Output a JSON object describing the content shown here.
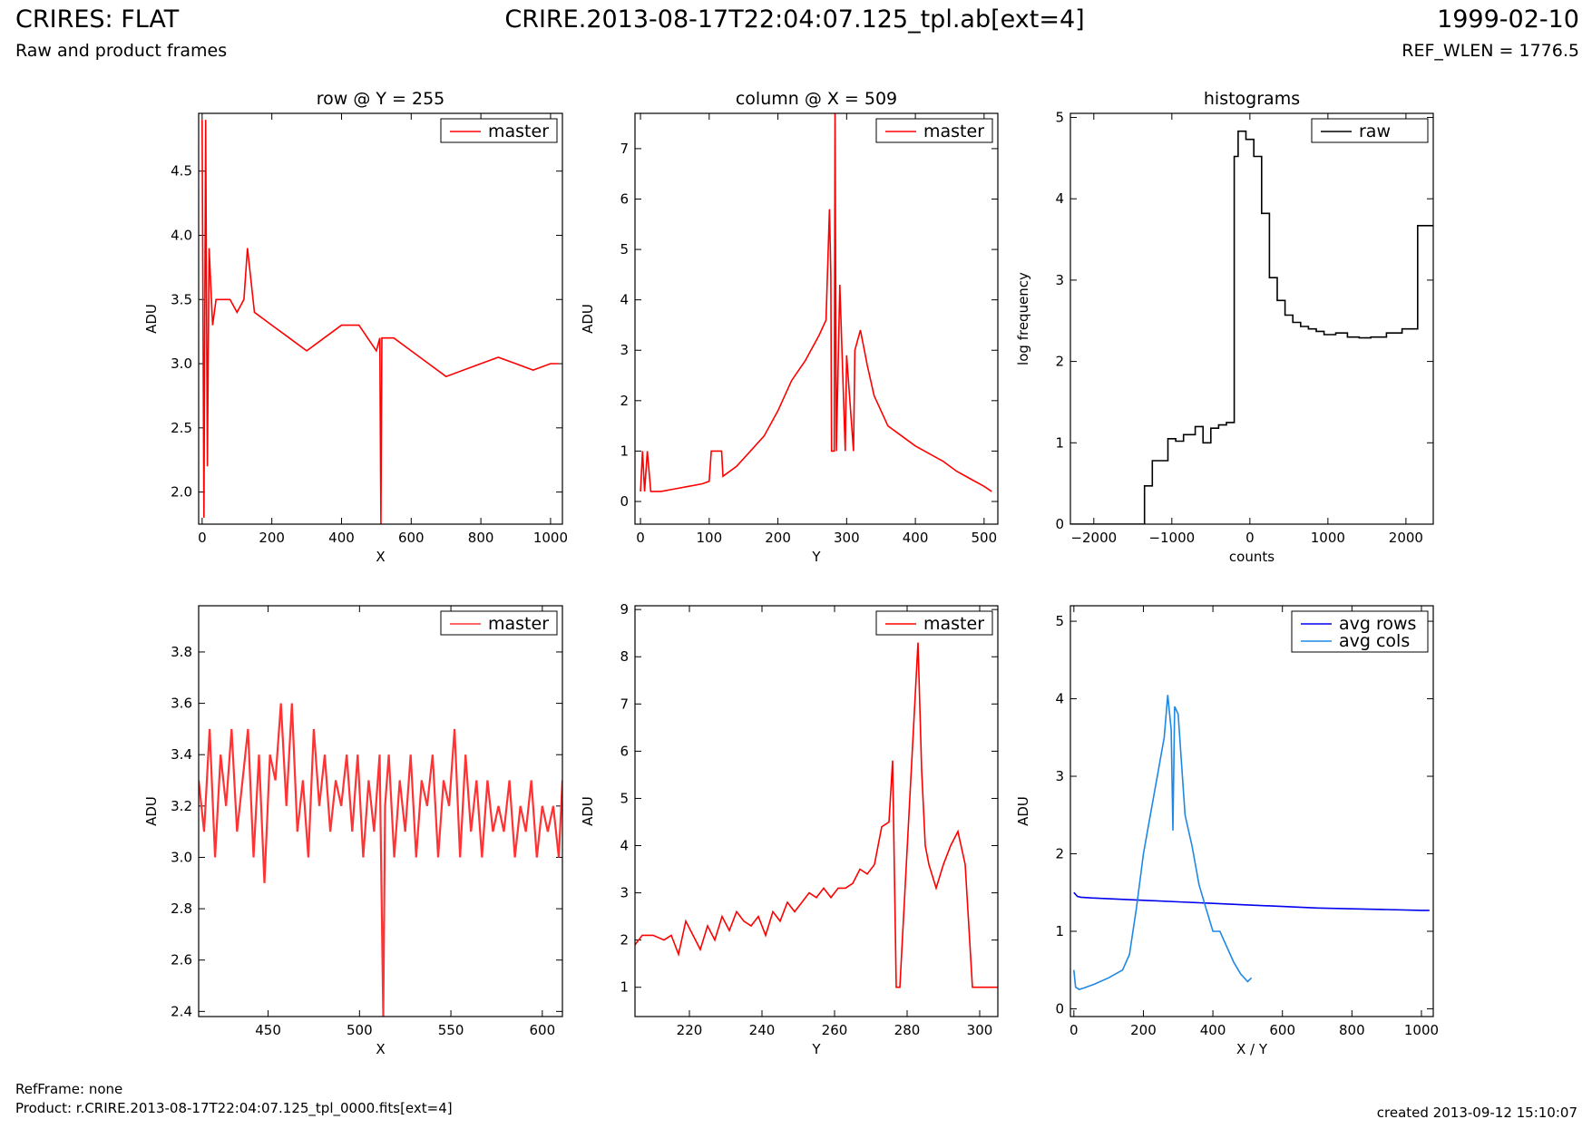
{
  "header": {
    "title_left": "CRIRES: FLAT",
    "subtitle_left": "Raw and product frames",
    "title_center": "CRIRE.2013-08-17T22:04:07.125_tpl.ab[ext=4]",
    "title_right": "1999-02-10",
    "subtitle_right": "REF_WLEN = 1776.5"
  },
  "footer": {
    "ref_frame": "RefFrame: none",
    "product": "Product: r.CRIRE.2013-08-17T22:04:07.125_tpl_0000.fits[ext=4]",
    "created": "created 2013-09-12 15:10:07"
  },
  "chart_data": [
    {
      "type": "line",
      "title": "row @ Y = 255",
      "xlabel": "X",
      "ylabel": "ADU",
      "xlim": [
        -10,
        1034
      ],
      "ylim": [
        1.75,
        4.95
      ],
      "xticks": [
        0,
        200,
        400,
        600,
        800,
        1000
      ],
      "yticks": [
        2.0,
        2.5,
        3.0,
        3.5,
        4.0,
        4.5
      ],
      "legend_position": "top-right",
      "series": [
        {
          "name": "master",
          "color": "#ff0000",
          "x": [
            0,
            5,
            10,
            15,
            20,
            30,
            40,
            60,
            80,
            100,
            120,
            130,
            150,
            200,
            250,
            300,
            350,
            400,
            450,
            500,
            510,
            513,
            516,
            550,
            600,
            650,
            700,
            750,
            800,
            850,
            900,
            950,
            1000,
            1023
          ],
          "y": [
            4.9,
            1.8,
            4.9,
            2.2,
            3.9,
            3.3,
            3.5,
            3.5,
            3.5,
            3.4,
            3.5,
            3.9,
            3.4,
            3.3,
            3.2,
            3.1,
            3.2,
            3.3,
            3.3,
            3.1,
            3.2,
            1.75,
            3.2,
            3.2,
            3.1,
            3.0,
            2.9,
            2.95,
            3.0,
            3.05,
            3.0,
            2.95,
            3.0,
            3.0
          ]
        }
      ]
    },
    {
      "type": "line",
      "title": "column @ X = 509",
      "xlabel": "Y",
      "ylabel": "ADU",
      "xlim": [
        -8,
        520
      ],
      "ylim": [
        -0.45,
        7.7
      ],
      "xticks": [
        0,
        100,
        200,
        300,
        400,
        500
      ],
      "yticks": [
        0,
        1,
        2,
        3,
        4,
        5,
        6,
        7
      ],
      "legend_position": "top-right",
      "series": [
        {
          "name": "master",
          "color": "#ff0000",
          "x": [
            0,
            3,
            6,
            10,
            15,
            30,
            50,
            70,
            90,
            100,
            103,
            118,
            120,
            140,
            160,
            180,
            200,
            220,
            240,
            260,
            270,
            275,
            277,
            278,
            282,
            283,
            285,
            290,
            298,
            300,
            310,
            312,
            320,
            330,
            340,
            350,
            360,
            380,
            400,
            420,
            440,
            460,
            480,
            500,
            511
          ],
          "y": [
            0.2,
            1.0,
            0.2,
            1.0,
            0.2,
            0.2,
            0.25,
            0.3,
            0.35,
            0.4,
            1.0,
            1.0,
            0.5,
            0.7,
            1.0,
            1.3,
            1.8,
            2.4,
            2.8,
            3.3,
            3.6,
            5.8,
            4.5,
            1.0,
            1.0,
            7.7,
            1.0,
            4.3,
            1.0,
            2.9,
            1.0,
            3.0,
            3.4,
            2.7,
            2.1,
            1.8,
            1.5,
            1.3,
            1.1,
            0.95,
            0.8,
            0.6,
            0.45,
            0.3,
            0.2
          ]
        }
      ]
    },
    {
      "type": "line",
      "title": "histograms",
      "xlabel": "counts",
      "ylabel": "log frequency",
      "xlim": [
        -2300,
        2350
      ],
      "ylim": [
        0,
        5.05
      ],
      "xticks": [
        -2000,
        -1000,
        0,
        1000,
        2000
      ],
      "yticks": [
        0,
        1,
        2,
        3,
        4,
        5
      ],
      "legend_position": "top-right",
      "series": [
        {
          "name": "raw",
          "color": "#000000",
          "step": true,
          "x": [
            -2300,
            -1350,
            -1350,
            -1250,
            -1250,
            -1050,
            -1050,
            -950,
            -950,
            -850,
            -850,
            -700,
            -700,
            -600,
            -600,
            -500,
            -500,
            -400,
            -400,
            -300,
            -300,
            -200,
            -200,
            -150,
            -150,
            -50,
            -50,
            50,
            50,
            150,
            150,
            250,
            250,
            350,
            350,
            450,
            450,
            550,
            550,
            650,
            650,
            750,
            750,
            850,
            850,
            950,
            950,
            1100,
            1100,
            1250,
            1250,
            1400,
            1400,
            1550,
            1550,
            1750,
            1750,
            1950,
            1950,
            2150,
            2150,
            2250,
            2250,
            2350
          ],
          "y": [
            0,
            0,
            0.47,
            0.47,
            0.78,
            0.78,
            1.05,
            1.05,
            1.02,
            1.02,
            1.1,
            1.1,
            1.2,
            1.2,
            1.0,
            1.0,
            1.18,
            1.18,
            1.22,
            1.22,
            1.25,
            1.25,
            4.52,
            4.52,
            4.83,
            4.83,
            4.73,
            4.73,
            4.52,
            4.52,
            3.82,
            3.82,
            3.03,
            3.03,
            2.75,
            2.75,
            2.57,
            2.57,
            2.48,
            2.48,
            2.43,
            2.43,
            2.4,
            2.4,
            2.37,
            2.37,
            2.33,
            2.33,
            2.35,
            2.35,
            2.3,
            2.3,
            2.29,
            2.29,
            2.3,
            2.3,
            2.35,
            2.35,
            2.4,
            2.4,
            3.67,
            3.67,
            3.67,
            3.67
          ]
        }
      ]
    },
    {
      "type": "line",
      "title": "",
      "xlabel": "X",
      "ylabel": "ADU",
      "xlim": [
        412,
        611
      ],
      "ylim": [
        2.38,
        3.98
      ],
      "xticks": [
        450,
        500,
        550,
        600
      ],
      "yticks": [
        2.4,
        2.6,
        2.8,
        3.0,
        3.2,
        3.4,
        3.6,
        3.8
      ],
      "legend_position": "top-right",
      "series": [
        {
          "name": "master",
          "color": "#ff3333",
          "x": [
            412,
            415,
            418,
            421,
            424,
            427,
            430,
            433,
            436,
            439,
            442,
            445,
            448,
            451,
            454,
            457,
            460,
            463,
            466,
            469,
            472,
            475,
            478,
            481,
            484,
            487,
            490,
            493,
            496,
            499,
            502,
            505,
            508,
            511,
            513,
            514,
            516,
            519,
            522,
            525,
            528,
            531,
            534,
            537,
            540,
            543,
            546,
            549,
            552,
            555,
            558,
            561,
            564,
            567,
            570,
            573,
            576,
            579,
            582,
            585,
            588,
            591,
            594,
            597,
            600,
            603,
            606,
            609,
            611
          ],
          "y": [
            3.3,
            3.1,
            3.5,
            3.0,
            3.4,
            3.2,
            3.5,
            3.1,
            3.3,
            3.5,
            3.0,
            3.4,
            2.9,
            3.4,
            3.3,
            3.6,
            3.2,
            3.6,
            3.1,
            3.3,
            3.0,
            3.5,
            3.2,
            3.4,
            3.1,
            3.3,
            3.2,
            3.4,
            3.1,
            3.4,
            3.0,
            3.3,
            3.1,
            3.4,
            2.38,
            3.2,
            3.4,
            3.0,
            3.3,
            3.1,
            3.4,
            3.0,
            3.3,
            3.2,
            3.4,
            3.0,
            3.3,
            3.2,
            3.5,
            3.0,
            3.4,
            3.1,
            3.3,
            3.0,
            3.3,
            3.1,
            3.2,
            3.1,
            3.3,
            3.0,
            3.2,
            3.1,
            3.3,
            3.0,
            3.2,
            3.1,
            3.2,
            3.0,
            3.3
          ]
        }
      ]
    },
    {
      "type": "line",
      "title": "",
      "xlabel": "Y",
      "ylabel": "ADU",
      "xlim": [
        205,
        305
      ],
      "ylim": [
        0.38,
        9.08
      ],
      "xticks": [
        220,
        240,
        260,
        280,
        300
      ],
      "yticks": [
        1,
        2,
        3,
        4,
        5,
        6,
        7,
        8,
        9
      ],
      "legend_position": "top-right",
      "series": [
        {
          "name": "master",
          "color": "#ff0000",
          "step": true,
          "x": [
            205,
            207,
            210,
            213,
            215,
            217,
            219,
            221,
            223,
            225,
            227,
            229,
            231,
            233,
            235,
            237,
            239,
            241,
            243,
            245,
            247,
            249,
            251,
            253,
            255,
            257,
            259,
            261,
            263,
            265,
            267,
            269,
            271,
            273,
            275,
            276,
            277,
            278,
            283,
            284,
            285,
            286,
            288,
            290,
            292,
            294,
            296,
            298,
            300,
            305
          ],
          "y": [
            1.9,
            2.1,
            2.1,
            2.0,
            2.1,
            1.7,
            2.4,
            2.1,
            1.8,
            2.3,
            2.0,
            2.5,
            2.2,
            2.6,
            2.4,
            2.3,
            2.5,
            2.1,
            2.6,
            2.4,
            2.8,
            2.6,
            2.8,
            3.0,
            2.9,
            3.1,
            2.9,
            3.1,
            3.1,
            3.2,
            3.5,
            3.4,
            3.6,
            4.4,
            4.5,
            5.8,
            1.0,
            1.0,
            8.3,
            5.6,
            4.0,
            3.6,
            3.1,
            3.6,
            4.0,
            4.3,
            3.6,
            1.0,
            1.0,
            1.0
          ]
        }
      ]
    },
    {
      "type": "line",
      "title": "",
      "xlabel": "X / Y",
      "ylabel": "ADU",
      "xlim": [
        -10,
        1034
      ],
      "ylim": [
        -0.1,
        5.2
      ],
      "xticks": [
        0,
        200,
        400,
        600,
        800,
        1000
      ],
      "yticks": [
        0,
        1,
        2,
        3,
        4,
        5
      ],
      "legend_position": "top-right",
      "series": [
        {
          "name": "avg rows",
          "color": "#0000ee",
          "x": [
            0,
            10,
            20,
            50,
            100,
            200,
            300,
            400,
            500,
            600,
            700,
            800,
            900,
            1000,
            1023
          ],
          "y": [
            1.5,
            1.45,
            1.44,
            1.43,
            1.42,
            1.4,
            1.38,
            1.36,
            1.34,
            1.32,
            1.3,
            1.29,
            1.28,
            1.27,
            1.27
          ]
        },
        {
          "name": "avg cols",
          "color": "#1e88e5",
          "x": [
            0,
            5,
            15,
            30,
            60,
            100,
            140,
            160,
            180,
            200,
            220,
            240,
            260,
            270,
            280,
            285,
            290,
            300,
            320,
            340,
            360,
            380,
            400,
            420,
            440,
            460,
            480,
            500,
            511
          ],
          "y": [
            0.5,
            0.28,
            0.25,
            0.27,
            0.32,
            0.4,
            0.5,
            0.7,
            1.3,
            2.0,
            2.5,
            3.0,
            3.5,
            4.05,
            3.6,
            2.3,
            3.9,
            3.8,
            2.5,
            2.1,
            1.6,
            1.3,
            1.0,
            1.0,
            0.8,
            0.6,
            0.45,
            0.35,
            0.4
          ]
        }
      ]
    }
  ]
}
